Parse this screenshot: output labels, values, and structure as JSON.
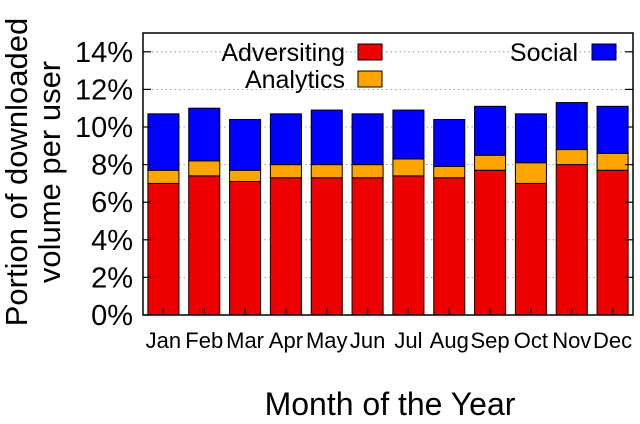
{
  "chart_data": {
    "type": "bar",
    "stacked": true,
    "title": "",
    "xlabel": "Month of the Year",
    "ylabel_line1": "Portion of downloaded",
    "ylabel_line2": "volume per user",
    "categories": [
      "Jan",
      "Feb",
      "Mar",
      "Apr",
      "May",
      "Jun",
      "Jul",
      "Aug",
      "Sep",
      "Oct",
      "Nov",
      "Dec"
    ],
    "ylim": [
      0,
      15
    ],
    "yticks": [
      0,
      2,
      4,
      6,
      8,
      10,
      12,
      14
    ],
    "ytick_labels": [
      "0%",
      "2%",
      "4%",
      "6%",
      "8%",
      "10%",
      "12%",
      "14%"
    ],
    "grid": true,
    "legend_position": "top",
    "series": [
      {
        "name": "Adversiting",
        "color": "#ee0000",
        "values": [
          7.0,
          7.4,
          7.1,
          7.3,
          7.3,
          7.3,
          7.4,
          7.3,
          7.7,
          7.0,
          8.0,
          7.7
        ]
      },
      {
        "name": "Analytics",
        "color": "#ffa500",
        "values": [
          0.7,
          0.8,
          0.6,
          0.7,
          0.7,
          0.7,
          0.9,
          0.6,
          0.8,
          1.1,
          0.8,
          0.9
        ]
      },
      {
        "name": "Social",
        "color": "#0000ff",
        "values": [
          3.0,
          2.8,
          2.7,
          2.7,
          2.9,
          2.7,
          2.6,
          2.5,
          2.6,
          2.6,
          2.5,
          2.5
        ]
      }
    ]
  }
}
